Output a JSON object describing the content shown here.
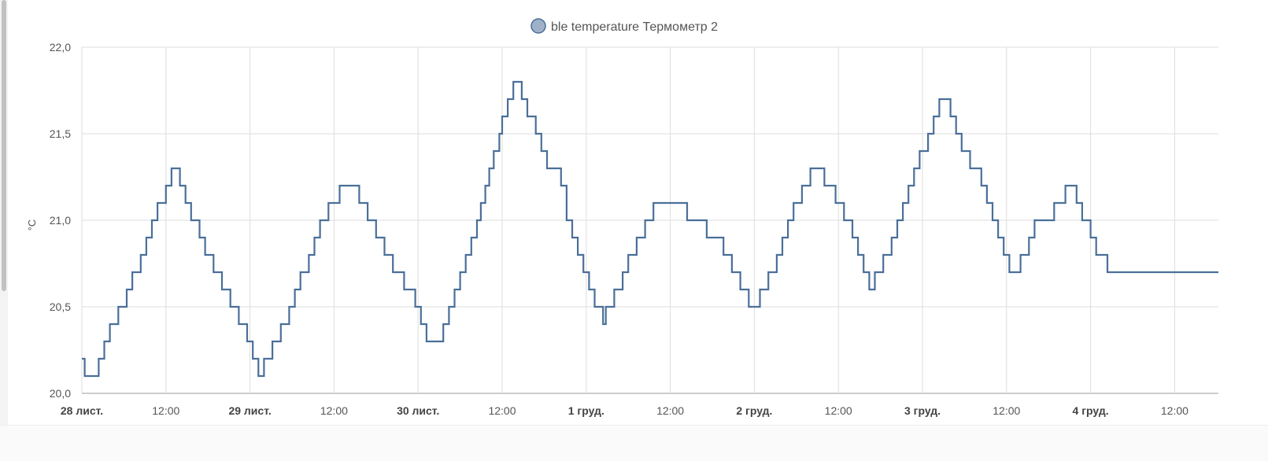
{
  "chart_data": {
    "type": "line",
    "step": true,
    "legend": {
      "position": "top-center"
    },
    "grid": true,
    "series": [
      {
        "name": "ble temperature Термометр 2",
        "color": "#4a6f99",
        "legend_swatch": "#9fb1c8",
        "points": [
          [
            0.0,
            20.2
          ],
          [
            0.05,
            20.1
          ],
          [
            0.25,
            20.1
          ],
          [
            0.3,
            20.2
          ],
          [
            0.4,
            20.3
          ],
          [
            0.5,
            20.4
          ],
          [
            0.65,
            20.5
          ],
          [
            0.8,
            20.6
          ],
          [
            0.9,
            20.7
          ],
          [
            1.05,
            20.8
          ],
          [
            1.15,
            20.9
          ],
          [
            1.25,
            21.0
          ],
          [
            1.35,
            21.1
          ],
          [
            1.5,
            21.2
          ],
          [
            1.6,
            21.3
          ],
          [
            1.75,
            21.2
          ],
          [
            1.85,
            21.1
          ],
          [
            1.95,
            21.0
          ],
          [
            2.1,
            20.9
          ],
          [
            2.2,
            20.8
          ],
          [
            2.35,
            20.7
          ],
          [
            2.5,
            20.6
          ],
          [
            2.65,
            20.5
          ],
          [
            2.8,
            20.4
          ],
          [
            2.95,
            20.3
          ],
          [
            3.05,
            20.2
          ],
          [
            3.15,
            20.1
          ],
          [
            3.25,
            20.2
          ],
          [
            3.4,
            20.3
          ],
          [
            3.55,
            20.4
          ],
          [
            3.7,
            20.5
          ],
          [
            3.8,
            20.6
          ],
          [
            3.9,
            20.7
          ],
          [
            4.05,
            20.8
          ],
          [
            4.15,
            20.9
          ],
          [
            4.25,
            21.0
          ],
          [
            4.4,
            21.1
          ],
          [
            4.6,
            21.2
          ],
          [
            4.95,
            21.1
          ],
          [
            5.1,
            21.0
          ],
          [
            5.25,
            20.9
          ],
          [
            5.4,
            20.8
          ],
          [
            5.55,
            20.7
          ],
          [
            5.75,
            20.6
          ],
          [
            5.95,
            20.5
          ],
          [
            6.05,
            20.4
          ],
          [
            6.15,
            20.3
          ],
          [
            6.45,
            20.4
          ],
          [
            6.55,
            20.5
          ],
          [
            6.65,
            20.6
          ],
          [
            6.75,
            20.7
          ],
          [
            6.85,
            20.8
          ],
          [
            6.95,
            20.9
          ],
          [
            7.05,
            21.0
          ],
          [
            7.12,
            21.1
          ],
          [
            7.2,
            21.2
          ],
          [
            7.27,
            21.3
          ],
          [
            7.35,
            21.4
          ],
          [
            7.45,
            21.5
          ],
          [
            7.5,
            21.6
          ],
          [
            7.6,
            21.7
          ],
          [
            7.7,
            21.8
          ],
          [
            7.85,
            21.7
          ],
          [
            7.95,
            21.6
          ],
          [
            8.1,
            21.5
          ],
          [
            8.2,
            21.4
          ],
          [
            8.3,
            21.3
          ],
          [
            8.55,
            21.2
          ],
          [
            8.65,
            21.0
          ],
          [
            8.75,
            20.9
          ],
          [
            8.85,
            20.8
          ],
          [
            8.95,
            20.7
          ],
          [
            9.05,
            20.6
          ],
          [
            9.15,
            20.5
          ],
          [
            9.3,
            20.4
          ],
          [
            9.35,
            20.5
          ],
          [
            9.5,
            20.6
          ],
          [
            9.65,
            20.7
          ],
          [
            9.75,
            20.8
          ],
          [
            9.9,
            20.9
          ],
          [
            10.05,
            21.0
          ],
          [
            10.2,
            21.1
          ],
          [
            10.7,
            21.1
          ],
          [
            10.8,
            21.0
          ],
          [
            11.15,
            20.9
          ],
          [
            11.45,
            20.8
          ],
          [
            11.6,
            20.7
          ],
          [
            11.75,
            20.6
          ],
          [
            11.9,
            20.5
          ],
          [
            12.1,
            20.6
          ],
          [
            12.25,
            20.7
          ],
          [
            12.4,
            20.8
          ],
          [
            12.5,
            20.9
          ],
          [
            12.6,
            21.0
          ],
          [
            12.7,
            21.1
          ],
          [
            12.85,
            21.2
          ],
          [
            13.0,
            21.3
          ],
          [
            13.25,
            21.2
          ],
          [
            13.45,
            21.1
          ],
          [
            13.6,
            21.0
          ],
          [
            13.75,
            20.9
          ],
          [
            13.85,
            20.8
          ],
          [
            13.95,
            20.7
          ],
          [
            14.05,
            20.6
          ],
          [
            14.15,
            20.7
          ],
          [
            14.3,
            20.8
          ],
          [
            14.45,
            20.9
          ],
          [
            14.55,
            21.0
          ],
          [
            14.65,
            21.1
          ],
          [
            14.75,
            21.2
          ],
          [
            14.85,
            21.3
          ],
          [
            14.95,
            21.4
          ],
          [
            15.1,
            21.5
          ],
          [
            15.2,
            21.6
          ],
          [
            15.3,
            21.7
          ],
          [
            15.5,
            21.6
          ],
          [
            15.6,
            21.5
          ],
          [
            15.7,
            21.4
          ],
          [
            15.85,
            21.3
          ],
          [
            16.05,
            21.2
          ],
          [
            16.15,
            21.1
          ],
          [
            16.25,
            21.0
          ],
          [
            16.35,
            20.9
          ],
          [
            16.45,
            20.8
          ],
          [
            16.55,
            20.7
          ],
          [
            16.75,
            20.8
          ],
          [
            16.9,
            20.9
          ],
          [
            17.0,
            21.0
          ],
          [
            17.35,
            21.1
          ],
          [
            17.55,
            21.2
          ],
          [
            17.75,
            21.1
          ],
          [
            17.85,
            21.0
          ],
          [
            18.0,
            20.9
          ],
          [
            18.1,
            20.8
          ],
          [
            18.3,
            20.7
          ]
        ]
      }
    ],
    "ylabel": "°C",
    "ylim": [
      20.0,
      22.0
    ],
    "y_ticks": [
      "20,0",
      "20,5",
      "21,0",
      "21,5",
      "22,0"
    ],
    "xlim": [
      0,
      18.3
    ],
    "x_ticks": [
      {
        "at": 0,
        "label": "28 лист.",
        "major": true
      },
      {
        "at": 1.5,
        "label": "12:00",
        "major": false
      },
      {
        "at": 3,
        "label": "29 лист.",
        "major": true
      },
      {
        "at": 4.5,
        "label": "12:00",
        "major": false
      },
      {
        "at": 6,
        "label": "30 лист.",
        "major": true
      },
      {
        "at": 7.5,
        "label": "12:00",
        "major": false
      },
      {
        "at": 9,
        "label": "1 груд.",
        "major": true
      },
      {
        "at": 10.5,
        "label": "12:00",
        "major": false
      },
      {
        "at": 12,
        "label": "2 груд.",
        "major": true
      },
      {
        "at": 13.5,
        "label": "12:00",
        "major": false
      },
      {
        "at": 15,
        "label": "3 груд.",
        "major": true
      },
      {
        "at": 16.5,
        "label": "12:00",
        "major": false
      },
      {
        "at": 18,
        "label": "4 груд.",
        "major": true
      },
      {
        "at": 19.5,
        "label": "12:00",
        "major": false
      }
    ]
  }
}
